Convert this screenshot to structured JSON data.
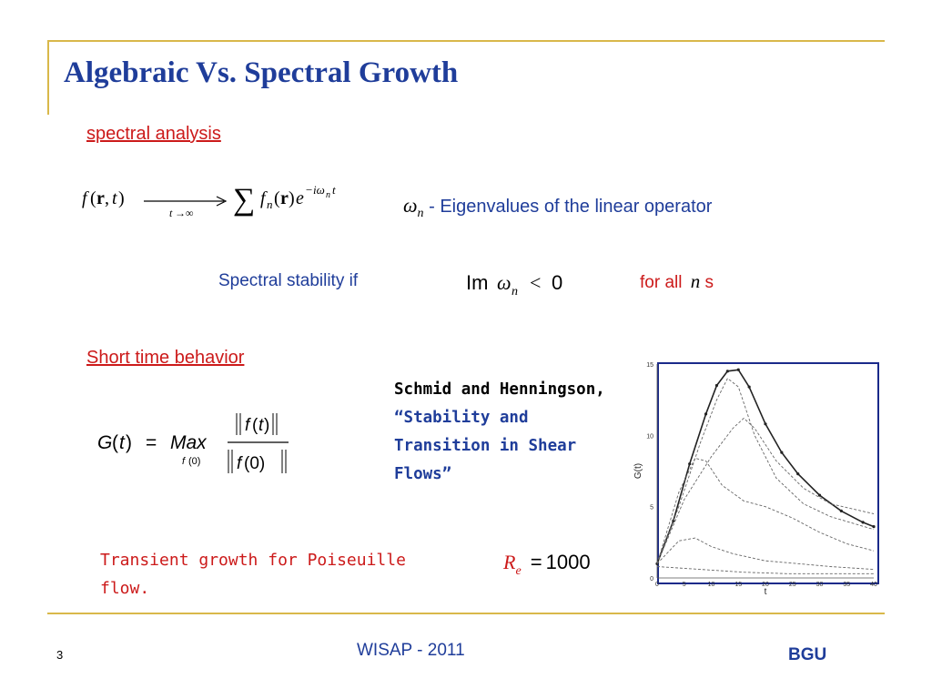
{
  "slide": {
    "title": "Algebraic Vs. Spectral Growth",
    "section1": "spectral analysis",
    "eigen_text": "- Eigenvalues of the linear operator",
    "stability_text": "Spectral stability if",
    "for_all_text": "for all",
    "s_text": "s",
    "section2": "Short time behavior",
    "citation": "Schmid and Henningson,",
    "citation_quote": "“Stability and Transition in Shear Flows”",
    "transient": "Transient growth for Poiseuille flow.",
    "re_value": "1000",
    "page_number": "3",
    "footer_center": "WISAP - 2011",
    "footer_right": "BGU"
  },
  "colors": {
    "title": "#1f3d9a",
    "accent_red": "#cc1a1a",
    "rule": "#d9b84a",
    "plot_frame": "#1a2a8a"
  },
  "chart_data": {
    "type": "line",
    "xlabel": "t",
    "ylabel": "G(t)",
    "xlim": [
      0,
      40
    ],
    "ylim": [
      0,
      15
    ],
    "x_ticks": [
      "0",
      "5",
      "10",
      "15",
      "20",
      "25",
      "30",
      "35",
      "40"
    ],
    "y_ticks": [
      "0",
      "5",
      "10",
      "15"
    ],
    "series": [
      {
        "values": [
          [
            0,
            1
          ],
          [
            3,
            4
          ],
          [
            6,
            8
          ],
          [
            9,
            11.5
          ],
          [
            11,
            13.5
          ],
          [
            13,
            14.5
          ],
          [
            15,
            14.6
          ],
          [
            17,
            13.4
          ],
          [
            20,
            10.8
          ],
          [
            23,
            8.8
          ],
          [
            26,
            7.3
          ],
          [
            30,
            5.8
          ],
          [
            34,
            4.7
          ],
          [
            38,
            3.9
          ],
          [
            40,
            3.6
          ]
        ]
      },
      {
        "values": [
          [
            0,
            1
          ],
          [
            4,
            5
          ],
          [
            8,
            9.5
          ],
          [
            11,
            12.5
          ],
          [
            13,
            14
          ],
          [
            15,
            13.4
          ],
          [
            18,
            10
          ],
          [
            22,
            7
          ],
          [
            27,
            5.2
          ],
          [
            32,
            4.3
          ],
          [
            40,
            3.4
          ]
        ]
      },
      {
        "values": [
          [
            0,
            1
          ],
          [
            5,
            5.5
          ],
          [
            10,
            8.5
          ],
          [
            14,
            10.5
          ],
          [
            16,
            11.2
          ],
          [
            18,
            10.5
          ],
          [
            22,
            8.2
          ],
          [
            27,
            6.3
          ],
          [
            32,
            5.2
          ],
          [
            40,
            4.5
          ]
        ]
      },
      {
        "values": [
          [
            0,
            1
          ],
          [
            4,
            6
          ],
          [
            7,
            8.4
          ],
          [
            9,
            8.2
          ],
          [
            12,
            6.5
          ],
          [
            16,
            5.4
          ],
          [
            20,
            5
          ],
          [
            25,
            4.2
          ],
          [
            30,
            3.2
          ],
          [
            35,
            2.4
          ],
          [
            40,
            1.9
          ]
        ]
      },
      {
        "values": [
          [
            0,
            1
          ],
          [
            4,
            2.6
          ],
          [
            7,
            2.8
          ],
          [
            10,
            2.2
          ],
          [
            14,
            1.7
          ],
          [
            20,
            1.2
          ],
          [
            26,
            1
          ],
          [
            32,
            0.8
          ],
          [
            40,
            0.6
          ]
        ]
      },
      {
        "values": [
          [
            0,
            0.8
          ],
          [
            8,
            0.6
          ],
          [
            16,
            0.4
          ],
          [
            24,
            0.3
          ],
          [
            32,
            0.3
          ],
          [
            40,
            0.3
          ]
        ]
      }
    ]
  }
}
